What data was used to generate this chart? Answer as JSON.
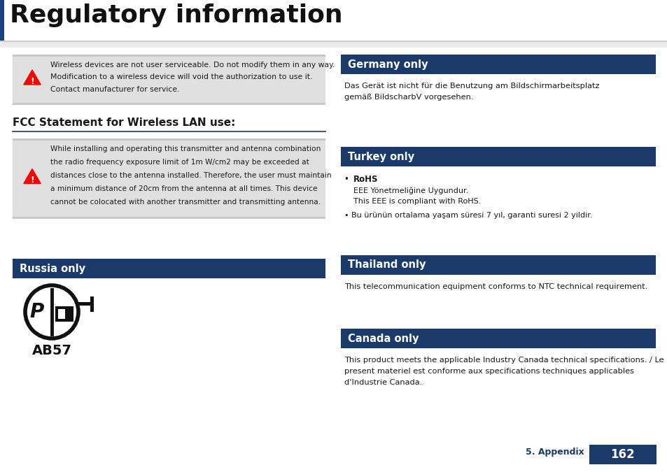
{
  "bg_color": "#ffffff",
  "title": "Regulatory information",
  "section_bg": "#1a3a6b",
  "section_text": "#ffffff",
  "body_color": "#1a1a1a",
  "warn_bg": "#e0e0e0",
  "footer_label": "5. Appendix",
  "footer_page": "162",
  "warning1_lines": [
    "Wireless devices are not user serviceable. Do not modify them in any way.",
    "Modification to a wireless device will void the authorization to use it.",
    "Contact manufacturer for service."
  ],
  "fcc_heading": "FCC Statement for Wireless LAN use:",
  "warning2_lines": [
    "While installing and operating this transmitter and antenna combination",
    "the radio frequency exposure limit of 1m W/cm2 may be exceeded at",
    "distances close to the antenna installed. Therefore, the user must maintain",
    "a minimum distance of 20cm from the antenna at all times. This device",
    "cannot be colocated with another transmitter and transmitting antenna."
  ],
  "russia_heading": "Russia only",
  "germany_heading": "Germany only",
  "germany_lines": [
    "Das Gerät ist nicht für die Benutzung am Bildschirmarbeitsplatz",
    "gemäß BildscharbV vorgesehen."
  ],
  "turkey_heading": "Turkey only",
  "turkey_bullet1_bold": "RoHS",
  "turkey_sub_lines": [
    "EEE Yönetmeliğine Uygundur.",
    "This EEE is compliant with RoHS."
  ],
  "turkey_bullet2": "Bu ürünün ortalama yaşam süresi 7 yıl, garanti suresi 2 yildir.",
  "thailand_heading": "Thailand only",
  "thailand_text": "This telecommunication equipment conforms to NTC technical requirement.",
  "canada_heading": "Canada only",
  "canada_lines": [
    "This product meets the applicable Industry Canada technical specifications. / Le",
    "present materiel est conforme aux specifications techniques applicables",
    "d'Industrie Canada."
  ]
}
